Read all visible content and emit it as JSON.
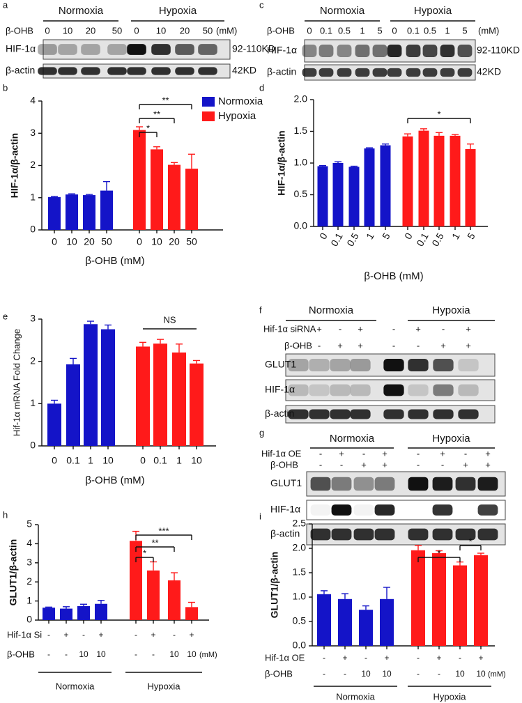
{
  "blots": [
    {
      "panel": "a",
      "groups": [
        "Normoxia",
        "Hypoxia"
      ],
      "treatments": [
        {
          "label": "β-OHB",
          "values": [
            "0",
            "10",
            "20",
            "50",
            "0",
            "10",
            "20",
            "50"
          ]
        }
      ],
      "unit": "(mM)",
      "rows": [
        {
          "label": "HIF-1α",
          "size": "92-110KD"
        },
        {
          "label": "β-actin",
          "size": "42KD"
        }
      ]
    },
    {
      "panel": "c",
      "groups": [
        "Normoxia",
        "Hypoxia"
      ],
      "treatments": [
        {
          "label": "β-OHB",
          "values": [
            "0",
            "0.1",
            "0.5",
            "1",
            "5",
            "0",
            "0.1",
            "0.5",
            "1",
            "5"
          ]
        }
      ],
      "unit": "(mM)",
      "rows": [
        {
          "label": "HIF-1α",
          "size": "92-110KD"
        },
        {
          "label": "β-actin",
          "size": "42KD"
        }
      ]
    },
    {
      "panel": "f",
      "groups": [
        "Normoxia",
        "Hypoxia"
      ],
      "treatments": [
        {
          "label": "Hif-1α siRNA",
          "values": [
            "-",
            "+",
            "-",
            "+",
            "-",
            "+",
            "-",
            "+"
          ]
        },
        {
          "label": "β-OHB",
          "values": [
            "-",
            "-",
            "+",
            "+",
            "-",
            "-",
            "+",
            "+"
          ]
        }
      ],
      "rows": [
        {
          "label": "GLUT1"
        },
        {
          "label": "HIF-1α"
        },
        {
          "label": "β-actin"
        }
      ]
    },
    {
      "panel": "g",
      "groups": [
        "Normoxia",
        "Hypoxia"
      ],
      "treatments": [
        {
          "label": "Hif-1α OE",
          "values": [
            "-",
            "+",
            "-",
            "+",
            "-",
            "+",
            "-",
            "+"
          ]
        },
        {
          "label": "β-OHB",
          "values": [
            "-",
            "-",
            "+",
            "+",
            "-",
            "-",
            "+",
            "+"
          ]
        }
      ],
      "rows": [
        {
          "label": "GLUT1"
        },
        {
          "label": "HIF-1α"
        },
        {
          "label": "β-actin"
        }
      ]
    }
  ],
  "chart_data": [
    {
      "type": "bar",
      "panel": "b",
      "y_label": "HIF-1α/β-actin",
      "x_label": "β-OHB (mM)",
      "categories": [
        "0",
        "10",
        "20",
        "50"
      ],
      "series": [
        {
          "name": "Normoxia",
          "color": "#1414c8",
          "values": [
            1.02,
            1.1,
            1.08,
            1.22
          ],
          "errors": [
            0.02,
            0.02,
            0.02,
            0.28
          ]
        },
        {
          "name": "Hypoxia",
          "color": "#ff1a1a",
          "values": [
            3.1,
            2.5,
            2.02,
            1.9
          ],
          "errors": [
            0.1,
            0.08,
            0.07,
            0.45
          ]
        }
      ],
      "ylim": [
        0,
        4
      ],
      "yticks": [
        0,
        1,
        2,
        3,
        4
      ],
      "annotations": [
        "*",
        "**",
        "**"
      ]
    },
    {
      "type": "bar",
      "panel": "d",
      "y_label": "HIF-1α/β-actin",
      "x_label": "β-OHB (mM)",
      "categories": [
        "0",
        "0.1",
        "0.5",
        "1",
        "5"
      ],
      "series": [
        {
          "name": "Normoxia",
          "color": "#1414c8",
          "values": [
            0.95,
            1.0,
            0.94,
            1.23,
            1.28
          ],
          "errors": [
            0.01,
            0.02,
            0.01,
            0.01,
            0.02
          ]
        },
        {
          "name": "Hypoxia",
          "color": "#ff1a1a",
          "values": [
            1.42,
            1.51,
            1.43,
            1.43,
            1.22
          ],
          "errors": [
            0.04,
            0.03,
            0.05,
            0.02,
            0.08
          ]
        }
      ],
      "ylim": [
        0,
        2
      ],
      "yticks": [
        {
          "value": 0,
          "label": "0.0"
        },
        0.5,
        {
          "value": 1,
          "label": "1.0"
        },
        1.5,
        {
          "value": 2,
          "label": "2.0"
        }
      ],
      "annotations": [
        "*"
      ]
    },
    {
      "type": "bar",
      "panel": "e",
      "y_label": "Hif-1α mRNA Fold Change",
      "x_label": "β-OHB (mM)",
      "categories": [
        "0",
        "0.1",
        "1",
        "10"
      ],
      "series": [
        {
          "name": "Normoxia",
          "color": "#1414c8",
          "values": [
            1.0,
            1.93,
            2.88,
            2.76
          ],
          "errors": [
            0.08,
            0.14,
            0.07,
            0.1
          ]
        },
        {
          "name": "Hypoxia",
          "color": "#ff1a1a",
          "values": [
            2.35,
            2.42,
            2.21,
            1.95
          ],
          "errors": [
            0.1,
            0.1,
            0.2,
            0.07
          ]
        }
      ],
      "ylim": [
        0,
        3
      ],
      "yticks": [
        0,
        1,
        2,
        3
      ],
      "annotations": [
        "NS"
      ]
    },
    {
      "type": "bar",
      "panel": "h",
      "y_label": "GLUT1/β-actin",
      "conditions": [
        {
          "label": "Hif-1α Si",
          "values": [
            "-",
            "+",
            "-",
            "+",
            "-",
            "+",
            "-",
            "+"
          ]
        },
        {
          "label": "β-OHB",
          "values": [
            "-",
            "-",
            "10",
            "10",
            "-",
            "-",
            "10",
            "10"
          ]
        }
      ],
      "unit": "(mM)",
      "series": [
        {
          "name": "Normoxia",
          "color": "#1414c8",
          "values": [
            0.65,
            0.6,
            0.73,
            0.85
          ],
          "errors": [
            0.03,
            0.1,
            0.1,
            0.18
          ]
        },
        {
          "name": "Hypoxia",
          "color": "#ff1a1a",
          "values": [
            4.15,
            2.6,
            2.08,
            0.68
          ],
          "errors": [
            0.5,
            0.45,
            0.4,
            0.25
          ]
        }
      ],
      "ylim": [
        0,
        5
      ],
      "yticks": [
        0,
        1,
        2,
        3,
        4,
        5
      ],
      "annotations": [
        "*",
        "**",
        "***"
      ]
    },
    {
      "type": "bar",
      "panel": "i",
      "y_label": "GLUT1/β-actin",
      "conditions": [
        {
          "label": "Hif-1α OE",
          "values": [
            "-",
            "+",
            "-",
            "+",
            "-",
            "+",
            "-",
            "+"
          ]
        },
        {
          "label": "β-OHB",
          "values": [
            "-",
            "-",
            "10",
            "10",
            "-",
            "-",
            "10",
            "10"
          ]
        }
      ],
      "unit": "(mM)",
      "series": [
        {
          "name": "Normoxia",
          "color": "#1414c8",
          "values": [
            1.06,
            0.96,
            0.74,
            0.96
          ],
          "errors": [
            0.07,
            0.11,
            0.08,
            0.24
          ]
        },
        {
          "name": "Hypoxia",
          "color": "#ff1a1a",
          "values": [
            1.96,
            1.9,
            1.65,
            1.86
          ],
          "errors": [
            0.1,
            0.05,
            0.07,
            0.04
          ]
        }
      ],
      "ylim": [
        0,
        2.5
      ],
      "yticks": [
        {
          "value": 0,
          "label": "0.0"
        },
        0.5,
        {
          "value": 1,
          "label": "1.0"
        },
        1.5,
        {
          "value": 2,
          "label": "2.0"
        },
        2.5
      ],
      "annotations": [
        "*",
        "*"
      ]
    }
  ]
}
